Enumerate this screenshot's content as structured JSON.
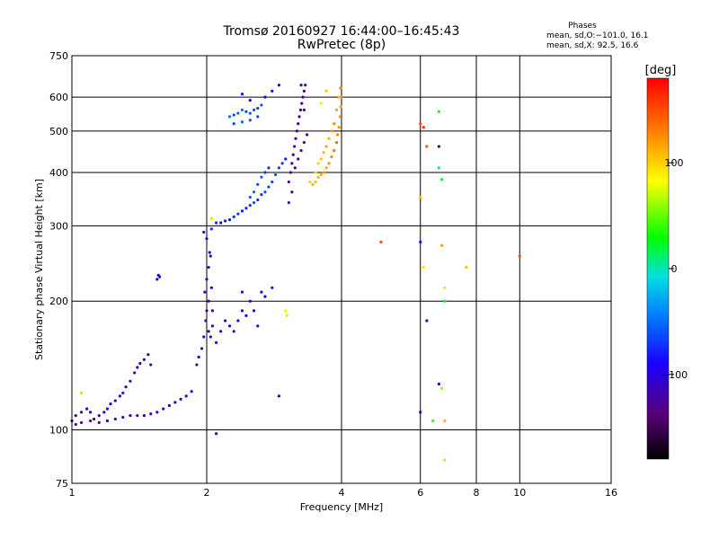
{
  "title": "Tromsø 20160927 16:44:00–16:45:43",
  "subtitle": "RwPretec (8p)",
  "phases": {
    "heading": "Phases",
    "line_o": "mean, sd,O:−101.0, 16.1",
    "line_x": "mean, sd,X:  92.5, 16.6"
  },
  "colorbar": {
    "label": "[deg]",
    "ticks": [
      {
        "value": 100,
        "label": "100"
      },
      {
        "value": 0,
        "label": "0"
      },
      {
        "value": -100,
        "label": "−100"
      }
    ],
    "range": [
      -180,
      180
    ]
  },
  "chart_data": {
    "type": "scatter",
    "title": "Tromsø 20160927 16:44:00–16:45:43",
    "subtitle": "RwPretec (8p)",
    "xlabel": "Frequency [MHz]",
    "ylabel": "Stationary phase Virtual Height [km]",
    "x_scale": "log2",
    "y_scale": "log",
    "xlim": [
      1,
      16
    ],
    "ylim": [
      75,
      750
    ],
    "x_ticks": [
      {
        "v": 1,
        "label": "1"
      },
      {
        "v": 2,
        "label": "2"
      },
      {
        "v": 4,
        "label": "4"
      },
      {
        "v": 6,
        "label": "6"
      },
      {
        "v": 8,
        "label": "8"
      },
      {
        "v": 10,
        "label": "10"
      },
      {
        "v": 16,
        "label": "16"
      }
    ],
    "y_ticks": [
      {
        "v": 75,
        "label": "75"
      },
      {
        "v": 100,
        "label": "100"
      },
      {
        "v": 200,
        "label": "200"
      },
      {
        "v": 300,
        "label": "300"
      },
      {
        "v": 400,
        "label": "400"
      },
      {
        "v": 500,
        "label": "500"
      },
      {
        "v": 600,
        "label": "600"
      },
      {
        "v": 750,
        "label": "750"
      }
    ],
    "grid": true,
    "color_by": "phase_deg",
    "points": [
      [
        1.0,
        105,
        -110
      ],
      [
        1.02,
        108,
        -115
      ],
      [
        1.05,
        110,
        -110
      ],
      [
        1.08,
        112,
        -105
      ],
      [
        1.1,
        110,
        -100
      ],
      [
        1.12,
        106,
        -120
      ],
      [
        1.15,
        108,
        -115
      ],
      [
        1.18,
        110,
        -110
      ],
      [
        1.2,
        112,
        -105
      ],
      [
        1.22,
        115,
        -100
      ],
      [
        1.25,
        117,
        -110
      ],
      [
        1.28,
        120,
        -115
      ],
      [
        1.3,
        122,
        -110
      ],
      [
        1.32,
        126,
        -115
      ],
      [
        1.35,
        130,
        -120
      ],
      [
        1.38,
        136,
        -115
      ],
      [
        1.4,
        140,
        -110
      ],
      [
        1.42,
        143,
        -120
      ],
      [
        1.45,
        146,
        -115
      ],
      [
        1.48,
        150,
        -110
      ],
      [
        1.5,
        142,
        -118
      ],
      [
        1.02,
        103,
        -120
      ],
      [
        1.05,
        104,
        -125
      ],
      [
        1.1,
        105,
        -120
      ],
      [
        1.15,
        104,
        -118
      ],
      [
        1.2,
        105,
        -125
      ],
      [
        1.25,
        106,
        -120
      ],
      [
        1.3,
        107,
        -115
      ],
      [
        1.35,
        108,
        -120
      ],
      [
        1.4,
        108,
        -118
      ],
      [
        1.45,
        108,
        -125
      ],
      [
        1.5,
        109,
        -120
      ],
      [
        1.55,
        110,
        -115
      ],
      [
        1.6,
        112,
        -110
      ],
      [
        1.65,
        114,
        -105
      ],
      [
        1.7,
        116,
        -110
      ],
      [
        1.75,
        118,
        -110
      ],
      [
        1.8,
        120,
        -105
      ],
      [
        1.85,
        123,
        -100
      ],
      [
        1.05,
        122,
        60
      ],
      [
        1.55,
        225,
        -110
      ],
      [
        1.56,
        230,
        -100
      ],
      [
        1.57,
        228,
        -105
      ],
      [
        1.9,
        142,
        -110
      ],
      [
        1.92,
        148,
        -105
      ],
      [
        1.95,
        155,
        -100
      ],
      [
        1.97,
        165,
        -110
      ],
      [
        1.99,
        180,
        -115
      ],
      [
        2.0,
        190,
        -120
      ],
      [
        2.02,
        170,
        -110
      ],
      [
        2.04,
        165,
        -105
      ],
      [
        2.06,
        175,
        -100
      ],
      [
        1.98,
        210,
        -115
      ],
      [
        2.0,
        225,
        -110
      ],
      [
        2.02,
        240,
        -115
      ],
      [
        2.04,
        255,
        -110
      ],
      [
        2.02,
        200,
        -120
      ],
      [
        2.05,
        215,
        -110
      ],
      [
        2.06,
        190,
        -115
      ],
      [
        1.97,
        290,
        -100
      ],
      [
        2.0,
        280,
        -95
      ],
      [
        2.03,
        260,
        -110
      ],
      [
        2.1,
        160,
        -100
      ],
      [
        2.15,
        170,
        -95
      ],
      [
        2.2,
        180,
        -105
      ],
      [
        2.25,
        175,
        -110
      ],
      [
        2.3,
        170,
        -100
      ],
      [
        2.35,
        180,
        -105
      ],
      [
        2.4,
        190,
        -100
      ],
      [
        2.45,
        185,
        -110
      ],
      [
        2.5,
        200,
        -100
      ],
      [
        2.55,
        190,
        -105
      ],
      [
        2.6,
        175,
        -100
      ],
      [
        2.65,
        210,
        -110
      ],
      [
        2.7,
        205,
        -100
      ],
      [
        2.8,
        215,
        -105
      ],
      [
        2.1,
        98,
        -90
      ],
      [
        2.4,
        210,
        -110
      ],
      [
        2.9,
        120,
        -110
      ],
      [
        2.15,
        305,
        -95
      ],
      [
        2.2,
        308,
        -80
      ],
      [
        2.25,
        310,
        -85
      ],
      [
        2.3,
        315,
        -75
      ],
      [
        2.35,
        320,
        -70
      ],
      [
        2.4,
        325,
        -80
      ],
      [
        2.45,
        330,
        -75
      ],
      [
        2.5,
        335,
        -70
      ],
      [
        2.55,
        340,
        -65
      ],
      [
        2.6,
        345,
        -75
      ],
      [
        2.65,
        355,
        -70
      ],
      [
        2.7,
        360,
        -60
      ],
      [
        2.75,
        370,
        -65
      ],
      [
        2.8,
        380,
        -70
      ],
      [
        2.85,
        395,
        -60
      ],
      [
        2.9,
        410,
        -65
      ],
      [
        2.95,
        420,
        -70
      ],
      [
        3.0,
        430,
        -80
      ],
      [
        2.5,
        350,
        -60
      ],
      [
        2.55,
        360,
        -55
      ],
      [
        2.6,
        375,
        -65
      ],
      [
        2.65,
        390,
        -60
      ],
      [
        2.7,
        400,
        -70
      ],
      [
        2.75,
        410,
        -75
      ],
      [
        2.05,
        295,
        -70
      ],
      [
        2.05,
        312,
        70
      ],
      [
        2.1,
        305,
        -80
      ],
      [
        2.25,
        540,
        -50
      ],
      [
        2.3,
        545,
        -60
      ],
      [
        2.35,
        550,
        -55
      ],
      [
        2.4,
        560,
        -50
      ],
      [
        2.45,
        555,
        -65
      ],
      [
        2.5,
        550,
        -55
      ],
      [
        2.55,
        560,
        -60
      ],
      [
        2.6,
        565,
        -70
      ],
      [
        2.65,
        575,
        -60
      ],
      [
        2.3,
        520,
        -65
      ],
      [
        2.4,
        525,
        -55
      ],
      [
        2.5,
        530,
        -60
      ],
      [
        2.6,
        540,
        -65
      ],
      [
        2.7,
        600,
        -90
      ],
      [
        2.8,
        620,
        -85
      ],
      [
        2.9,
        640,
        -95
      ],
      [
        2.5,
        590,
        -100
      ],
      [
        2.4,
        610,
        -95
      ],
      [
        3.05,
        380,
        -120
      ],
      [
        3.08,
        400,
        -125
      ],
      [
        3.1,
        420,
        -115
      ],
      [
        3.12,
        440,
        -130
      ],
      [
        3.14,
        460,
        -120
      ],
      [
        3.16,
        480,
        -125
      ],
      [
        3.18,
        500,
        -115
      ],
      [
        3.2,
        520,
        -120
      ],
      [
        3.22,
        540,
        -125
      ],
      [
        3.24,
        560,
        -130
      ],
      [
        3.26,
        580,
        -120
      ],
      [
        3.28,
        600,
        -125
      ],
      [
        3.3,
        620,
        -115
      ],
      [
        3.32,
        640,
        -125
      ],
      [
        3.15,
        410,
        -135
      ],
      [
        3.2,
        430,
        -125
      ],
      [
        3.25,
        450,
        -130
      ],
      [
        3.3,
        470,
        -120
      ],
      [
        3.35,
        490,
        -125
      ],
      [
        3.25,
        640,
        -130
      ],
      [
        3.3,
        560,
        -135
      ],
      [
        3.1,
        360,
        -120
      ],
      [
        3.05,
        340,
        -115
      ],
      [
        3.4,
        380,
        100
      ],
      [
        3.45,
        375,
        110
      ],
      [
        3.5,
        380,
        105
      ],
      [
        3.55,
        390,
        110
      ],
      [
        3.6,
        395,
        115
      ],
      [
        3.65,
        400,
        120
      ],
      [
        3.7,
        410,
        115
      ],
      [
        3.75,
        420,
        125
      ],
      [
        3.8,
        435,
        130
      ],
      [
        3.85,
        450,
        135
      ],
      [
        3.9,
        470,
        140
      ],
      [
        3.92,
        490,
        130
      ],
      [
        3.95,
        510,
        125
      ],
      [
        3.97,
        540,
        120
      ],
      [
        3.98,
        570,
        115
      ],
      [
        4.0,
        600,
        125
      ],
      [
        3.98,
        630,
        130
      ],
      [
        3.5,
        400,
        95
      ],
      [
        3.55,
        420,
        100
      ],
      [
        3.6,
        430,
        105
      ],
      [
        3.65,
        445,
        110
      ],
      [
        3.7,
        460,
        120
      ],
      [
        3.75,
        480,
        115
      ],
      [
        3.8,
        500,
        120
      ],
      [
        3.85,
        520,
        125
      ],
      [
        3.9,
        560,
        115
      ],
      [
        3.95,
        600,
        110
      ],
      [
        3.7,
        620,
        105
      ],
      [
        3.6,
        580,
        90
      ],
      [
        3.0,
        190,
        80
      ],
      [
        3.02,
        185,
        70
      ],
      [
        4.9,
        275,
        150
      ],
      [
        6.0,
        520,
        150
      ],
      [
        6.1,
        510,
        160
      ],
      [
        6.2,
        460,
        150
      ],
      [
        6.0,
        350,
        110
      ],
      [
        6.1,
        240,
        95
      ],
      [
        6.0,
        275,
        -90
      ],
      [
        6.2,
        180,
        -120
      ],
      [
        6.0,
        110,
        -110
      ],
      [
        6.4,
        105,
        40
      ],
      [
        6.6,
        555,
        20
      ],
      [
        6.6,
        460,
        -150
      ],
      [
        6.6,
        410,
        10
      ],
      [
        6.7,
        385,
        20
      ],
      [
        6.7,
        270,
        120
      ],
      [
        6.8,
        215,
        95
      ],
      [
        6.8,
        200,
        20
      ],
      [
        6.6,
        128,
        -95
      ],
      [
        6.7,
        125,
        60
      ],
      [
        6.8,
        105,
        110
      ],
      [
        6.8,
        85,
        100
      ],
      [
        7.6,
        240,
        110
      ],
      [
        10.0,
        255,
        150
      ]
    ]
  }
}
